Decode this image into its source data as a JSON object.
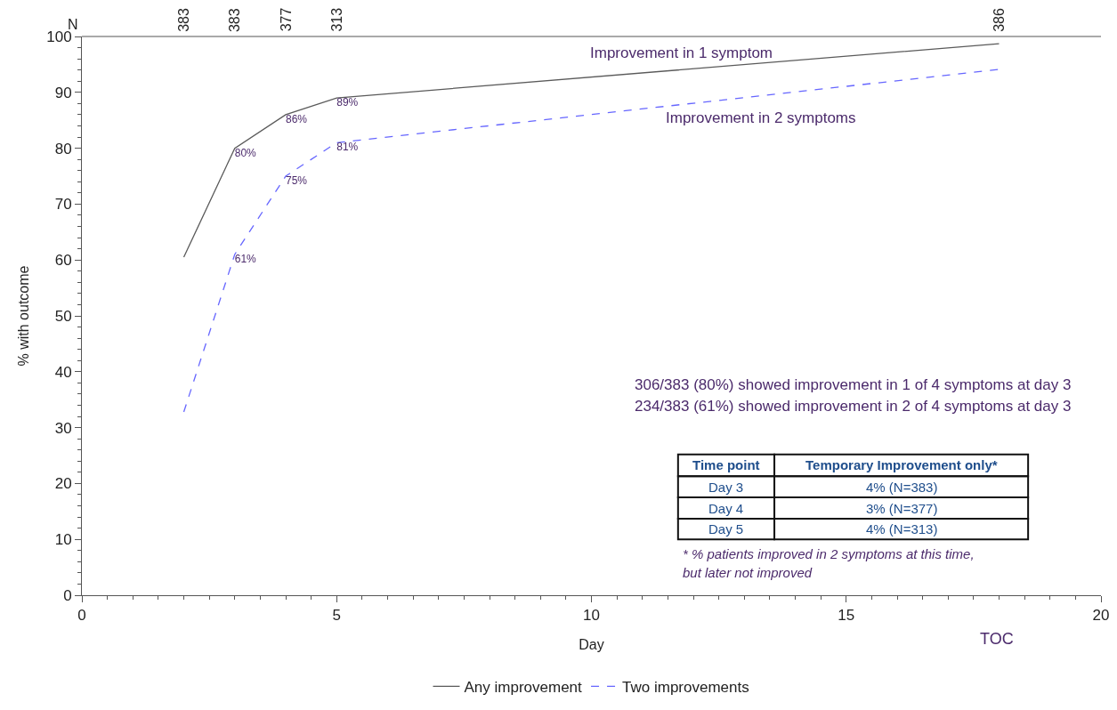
{
  "chart_data": {
    "type": "line",
    "xlabel": "Day",
    "ylabel": "% with outcome",
    "x": [
      2,
      3,
      4,
      5,
      18
    ],
    "xlim": [
      0,
      20
    ],
    "xticks": [
      0,
      5,
      10,
      15,
      20
    ],
    "ylim": [
      0,
      100
    ],
    "yticks": [
      0,
      10,
      20,
      30,
      40,
      50,
      60,
      70,
      80,
      90,
      100
    ],
    "series": [
      {
        "name": "Any improvement",
        "color": "#5a5a5a",
        "line_style": "solid",
        "values": [
          60.5,
          80,
          86,
          89,
          98.7
        ],
        "value_labels": [
          null,
          "80%",
          "86%",
          "89%",
          null
        ]
      },
      {
        "name": "Two improvements",
        "color": "#6666ff",
        "line_style": "dashed",
        "values": [
          32.8,
          61,
          75,
          81,
          94.1
        ],
        "value_labels": [
          null,
          "61%",
          "75%",
          "81%",
          null
        ]
      }
    ],
    "annotations": [
      "Improvement in 1 symptom",
      "Improvement in 2 symptoms",
      "306/383 (80%) showed improvement in 1 of 4 symptoms at day 3",
      "234/383 (61%) showed improvement in 2 of 4 symptoms at day 3",
      "TOC",
      "Time point",
      "Temporary Improvement only*",
      "Day 3",
      "4% (N=383)",
      "Day 4",
      "3% (N=377)",
      "Day 5",
      "4% (N=313)",
      "* % patients improved in 2 symptoms at this time,",
      "but later not improved",
      "N",
      "383",
      "383",
      "377",
      "313",
      "386"
    ],
    "legend": "bottom",
    "marker": "none"
  }
}
